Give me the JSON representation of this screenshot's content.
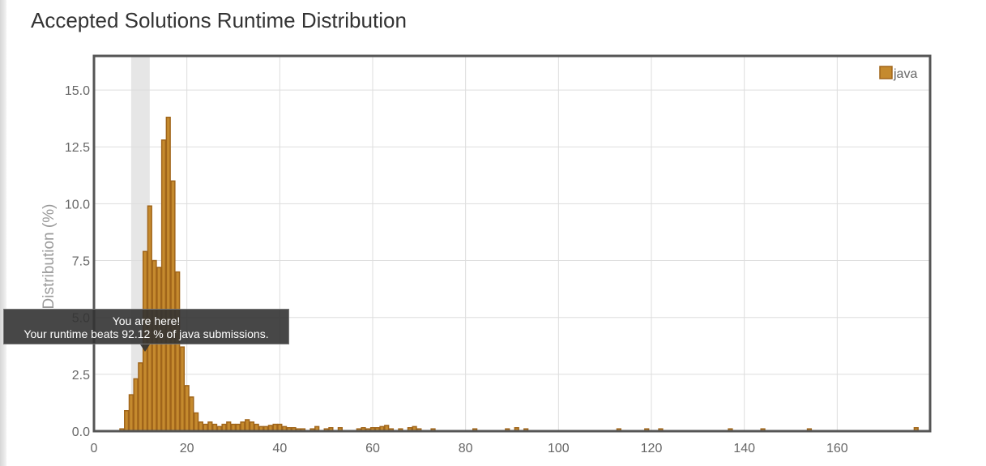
{
  "page": {
    "title": "Accepted Solutions Runtime Distribution"
  },
  "tooltip": {
    "line1": "You are here!",
    "line2": "Your runtime beats 92.12 % of java submissions."
  },
  "colors": {
    "bar_fill": "#c58a2e",
    "bar_stroke": "#a0651a",
    "highlight": "#e6e6e6",
    "grid": "#dddddd"
  },
  "chart_data": {
    "type": "bar",
    "title": "Accepted Solutions Runtime Distribution",
    "xlabel": "",
    "ylabel": "Distribution (%)",
    "xlim": [
      0,
      180
    ],
    "ylim": [
      0,
      16.5
    ],
    "x_ticks": [
      0,
      20,
      40,
      60,
      80,
      100,
      120,
      140,
      160
    ],
    "y_ticks": [
      0.0,
      2.5,
      5.0,
      7.5,
      10.0,
      12.5,
      15.0
    ],
    "y_tick_labels": [
      "0.0",
      "2.5",
      "5.0",
      "7.5",
      "10.0",
      "12.5",
      "15.0"
    ],
    "grid": true,
    "legend_position": "top-right",
    "highlight_range": [
      8,
      12
    ],
    "series": [
      {
        "name": "java",
        "x": [
          6,
          7,
          8,
          9,
          10,
          11,
          12,
          13,
          14,
          15,
          16,
          17,
          18,
          19,
          20,
          21,
          22,
          23,
          24,
          25,
          26,
          27,
          28,
          29,
          30,
          31,
          32,
          33,
          34,
          35,
          36,
          37,
          38,
          39,
          40,
          41,
          42,
          43,
          44,
          45,
          47,
          48,
          50,
          51,
          53,
          57,
          58,
          59,
          60,
          61,
          62,
          63,
          64,
          66,
          68,
          69,
          70,
          73,
          82,
          89,
          91,
          93,
          113,
          119,
          122,
          137,
          144,
          154,
          177
        ],
        "values": [
          0.1,
          0.9,
          1.6,
          2.3,
          3.0,
          7.9,
          9.9,
          7.5,
          7.2,
          12.8,
          13.8,
          11.0,
          7.0,
          3.7,
          2.0,
          1.5,
          0.8,
          0.4,
          0.3,
          0.4,
          0.3,
          0.2,
          0.3,
          0.4,
          0.3,
          0.3,
          0.4,
          0.5,
          0.4,
          0.3,
          0.2,
          0.2,
          0.25,
          0.3,
          0.3,
          0.2,
          0.15,
          0.15,
          0.1,
          0.1,
          0.1,
          0.2,
          0.1,
          0.15,
          0.15,
          0.1,
          0.15,
          0.1,
          0.15,
          0.15,
          0.2,
          0.25,
          0.1,
          0.1,
          0.15,
          0.2,
          0.1,
          0.1,
          0.1,
          0.1,
          0.15,
          0.1,
          0.1,
          0.1,
          0.1,
          0.1,
          0.1,
          0.1,
          0.15
        ]
      }
    ]
  }
}
